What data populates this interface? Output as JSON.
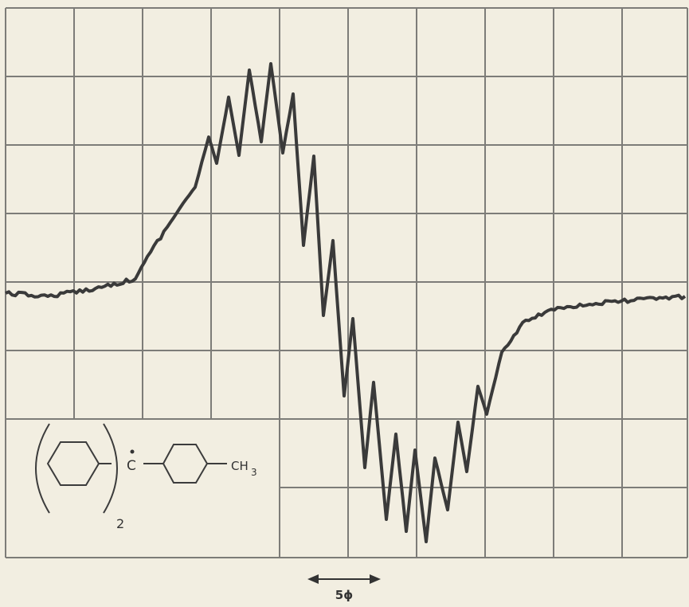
{
  "figure": {
    "scale_label": "5ϕ",
    "structure": {
      "multiplier": "2",
      "radical_carbon": "C",
      "end_group": "CH",
      "end_group_subscript": "3"
    }
  }
}
